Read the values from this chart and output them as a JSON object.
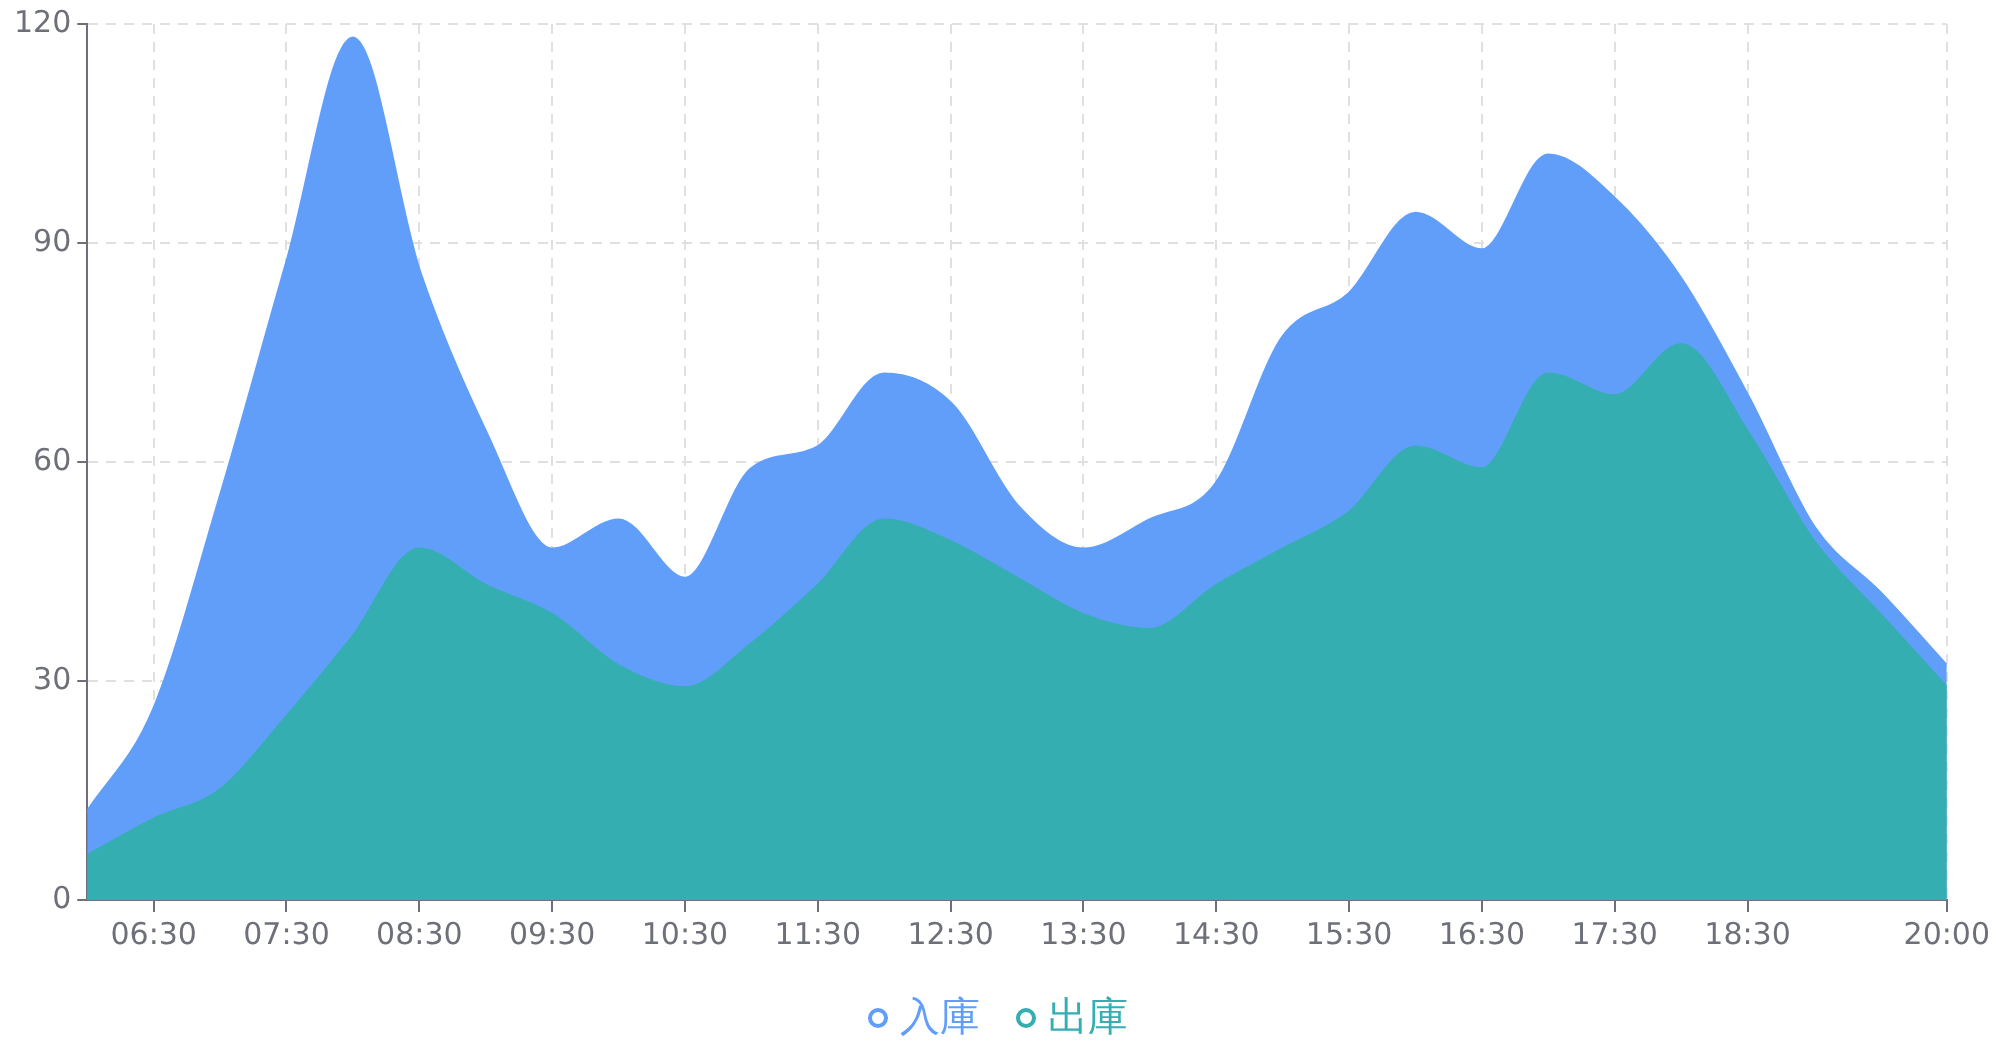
{
  "chart_data": {
    "type": "area",
    "x": [
      6,
      6.5,
      7,
      7.5,
      8,
      8.5,
      9,
      9.5,
      10,
      10.5,
      11,
      11.5,
      12,
      12.5,
      13,
      13.5,
      14,
      14.5,
      15,
      15.5,
      16,
      16.5,
      17,
      17.5,
      18,
      18.5,
      19,
      19.5,
      20
    ],
    "series": [
      {
        "name": "入庫",
        "color": "#619ef9",
        "values": [
          12,
          26,
          55,
          87,
          118,
          86,
          64,
          48,
          52,
          44,
          59,
          62,
          72,
          68,
          54,
          48,
          52,
          57,
          77,
          83,
          94,
          89,
          102,
          96,
          85,
          69,
          51,
          42,
          32
        ]
      },
      {
        "name": "出庫",
        "color": "#34aeb1",
        "values": [
          6,
          11,
          15,
          25,
          36,
          48,
          43,
          39,
          32,
          29,
          35,
          43,
          52,
          49,
          44,
          39,
          37,
          43,
          48,
          53,
          62,
          59,
          72,
          69,
          76,
          64,
          49,
          39,
          29
        ]
      }
    ],
    "xlim": [
      6,
      20
    ],
    "xticks": [
      {
        "value": 6.5,
        "label": "06:30"
      },
      {
        "value": 7.5,
        "label": "07:30"
      },
      {
        "value": 8.5,
        "label": "08:30"
      },
      {
        "value": 9.5,
        "label": "09:30"
      },
      {
        "value": 10.5,
        "label": "10:30"
      },
      {
        "value": 11.5,
        "label": "11:30"
      },
      {
        "value": 12.5,
        "label": "12:30"
      },
      {
        "value": 13.5,
        "label": "13:30"
      },
      {
        "value": 14.5,
        "label": "14:30"
      },
      {
        "value": 15.5,
        "label": "15:30"
      },
      {
        "value": 16.5,
        "label": "16:30"
      },
      {
        "value": 17.5,
        "label": "17:30"
      },
      {
        "value": 18.5,
        "label": "18:30"
      },
      {
        "value": 20,
        "label": "20:00"
      }
    ],
    "ylim": [
      0,
      120
    ],
    "yticks": [
      0,
      30,
      60,
      90,
      120
    ],
    "grid": true,
    "legend": "bottom",
    "marker": "none",
    "line_style": "solid"
  }
}
